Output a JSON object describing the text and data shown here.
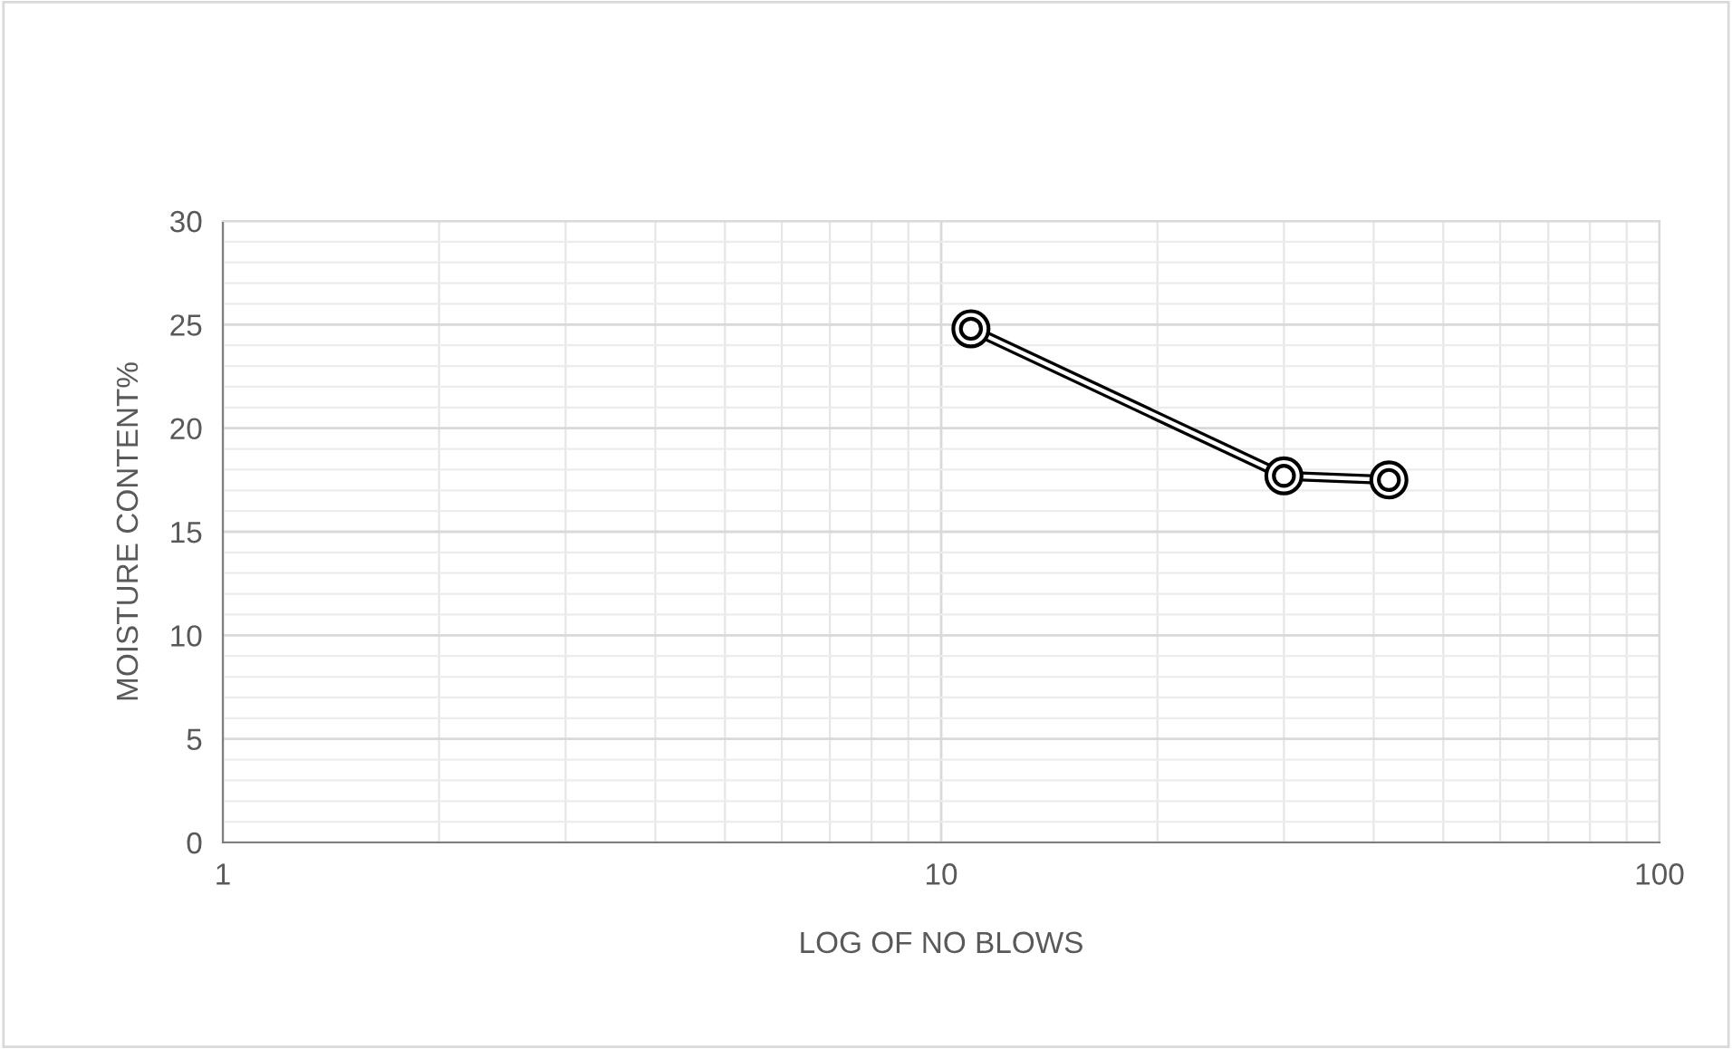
{
  "chart_data": {
    "type": "line",
    "xlabel": "LOG OF NO BLOWS",
    "ylabel": "MOISTURE CONTENT%",
    "x": [
      11,
      30,
      42
    ],
    "series": [
      {
        "color": "#000000",
        "values": [
          24.8,
          17.7,
          17.5
        ]
      }
    ],
    "log": "x",
    "xlim": [
      1,
      100
    ],
    "xticks": [
      1,
      10,
      100
    ],
    "ylim": [
      0,
      30
    ],
    "yticks": [
      0,
      5,
      10,
      15,
      20,
      25,
      30
    ],
    "grid": true,
    "marker": "circle",
    "line_style": "solid"
  }
}
